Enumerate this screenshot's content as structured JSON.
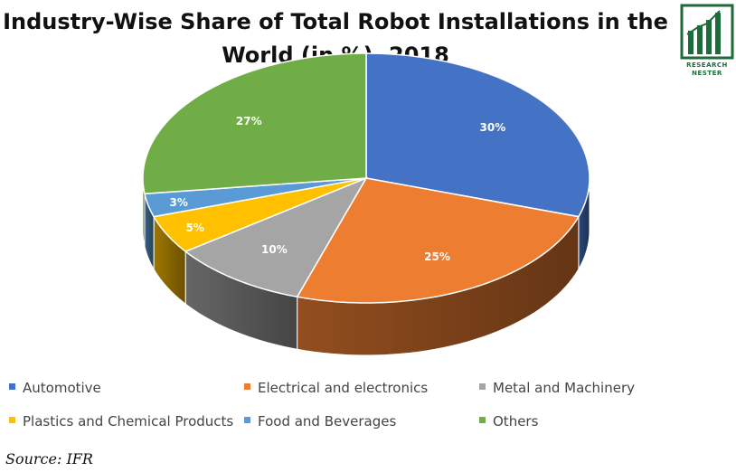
{
  "title_line1": "Industry-Wise Share of Total Robot Installations in the",
  "title_line2": "World (in %), 2018",
  "logo": {
    "line1": "RESEARCH",
    "line2": "NESTER",
    "color": "#1d6b3a",
    "icon": "bar-chart-logo-icon"
  },
  "source": "Source: IFR",
  "chart_data": {
    "type": "pie",
    "style": "3d",
    "legend_position": "bottom",
    "title": "Industry-Wise Share of Total Robot Installations in the World (in %), 2018",
    "slices": [
      {
        "label": "Automotive",
        "value": 30,
        "display": "30%",
        "color": "#4472c4"
      },
      {
        "label": "Electrical and electronics",
        "value": 25,
        "display": "25%",
        "color": "#ed7d31"
      },
      {
        "label": "Metal and Machinery",
        "value": 10,
        "display": "10%",
        "color": "#a5a5a5"
      },
      {
        "label": "Plastics and Chemical Products",
        "value": 5,
        "display": "5%",
        "color": "#ffc000"
      },
      {
        "label": "Food and Beverages",
        "value": 3,
        "display": "3%",
        "color": "#5b9bd5"
      },
      {
        "label": "Others",
        "value": 27,
        "display": "27%",
        "color": "#70ad47"
      }
    ]
  }
}
